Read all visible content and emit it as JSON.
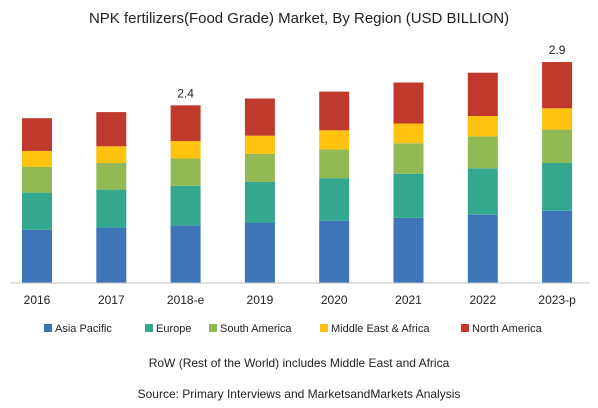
{
  "chart_data": {
    "type": "bar",
    "stacked": true,
    "title": "NPK fertilizers(Food Grade) Market, By Region (USD BILLION)",
    "xlabel": "",
    "ylabel": "",
    "ylim": [
      0,
      3.2
    ],
    "grid": false,
    "legend_position": "bottom",
    "categories": [
      "2016",
      "2017",
      "2018-e",
      "2019",
      "2020",
      "2021",
      "2022",
      "2023-p"
    ],
    "series": [
      {
        "name": "Asia Pacific",
        "color": "#3e75b8",
        "values": [
          0.7,
          0.73,
          0.76,
          0.79,
          0.82,
          0.86,
          0.9,
          0.95
        ]
      },
      {
        "name": "Europe",
        "color": "#34a88f",
        "values": [
          0.49,
          0.5,
          0.52,
          0.54,
          0.56,
          0.58,
          0.61,
          0.63
        ]
      },
      {
        "name": "South America",
        "color": "#93b955",
        "values": [
          0.34,
          0.35,
          0.36,
          0.37,
          0.38,
          0.4,
          0.42,
          0.44
        ]
      },
      {
        "name": "Middle East & Africa",
        "color": "#ffc20e",
        "values": [
          0.21,
          0.22,
          0.23,
          0.24,
          0.25,
          0.26,
          0.27,
          0.28
        ]
      },
      {
        "name": "North America",
        "color": "#bf3a2c",
        "values": [
          0.43,
          0.45,
          0.47,
          0.49,
          0.51,
          0.54,
          0.57,
          0.61
        ]
      }
    ],
    "data_labels": [
      {
        "category": "2018-e",
        "text": "2.4"
      },
      {
        "category": "2023-p",
        "text": "2.9"
      }
    ]
  },
  "notes": {
    "row": "RoW (Rest of the World) includes Middle East and Africa",
    "source": "Source: Primary Interviews and MarketsandMarkets Analysis"
  }
}
